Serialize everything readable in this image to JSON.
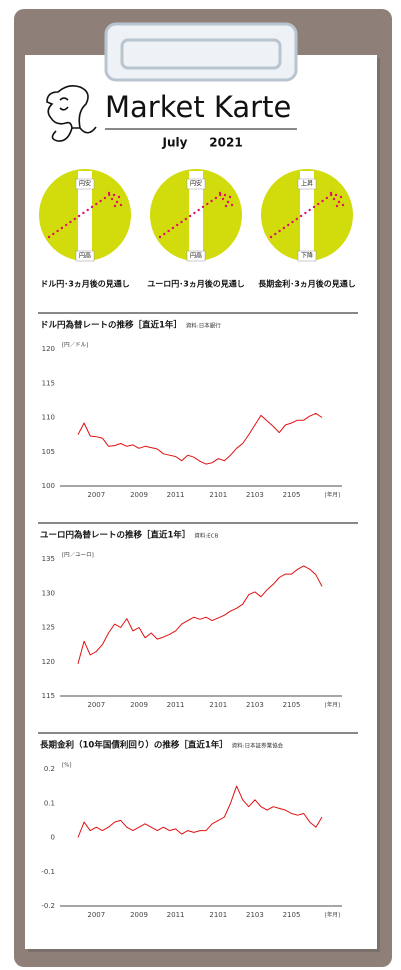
{
  "header": {
    "title": "Market Karte",
    "month": "July",
    "year": "2021"
  },
  "outlooks": [
    {
      "top": "円安",
      "bottom": "円高",
      "caption": "ドル円･3ヵ月後の見通し"
    },
    {
      "top": "円安",
      "bottom": "円高",
      "caption": "ユーロ円･3ヵ月後の見通し"
    },
    {
      "top": "上昇",
      "bottom": "下降",
      "caption": "長期金利･3ヵ月後の見通し"
    }
  ],
  "chart_data": [
    {
      "type": "line",
      "title": "ドル円為替レートの推移［直近1年］",
      "source": "資料:日本銀行",
      "y_label": "[円／ドル]",
      "x_label": "[年月]",
      "categories": [
        null,
        null,
        null,
        "2007",
        null,
        null,
        null,
        null,
        null,
        null,
        "2009",
        null,
        null,
        null,
        null,
        null,
        "2011",
        null,
        null,
        null,
        null,
        null,
        null,
        "2101",
        null,
        null,
        null,
        null,
        null,
        "2103",
        null,
        null,
        null,
        null,
        null,
        "2105",
        null,
        null,
        null,
        null,
        null
      ],
      "values": [
        107.5,
        109.2,
        107.3,
        107.2,
        107.0,
        105.8,
        105.9,
        106.2,
        105.8,
        106.0,
        105.5,
        105.8,
        105.6,
        105.4,
        104.7,
        104.5,
        104.3,
        103.7,
        104.5,
        104.2,
        103.6,
        103.2,
        103.4,
        104.0,
        103.7,
        104.5,
        105.5,
        106.2,
        107.5,
        108.9,
        110.3,
        109.5,
        108.7,
        107.8,
        108.9,
        109.2,
        109.6,
        109.6,
        110.2,
        110.6,
        110.0
      ],
      "color": "#e01010",
      "band_color": "#d4dadf",
      "ylim": [
        100,
        120
      ],
      "yticks": [
        100,
        105,
        110,
        115,
        120
      ]
    },
    {
      "type": "line",
      "title": "ユーロ円為替レートの推移［直近1年］",
      "source": "資料:ECB",
      "y_label": "[円／ユーロ]",
      "x_label": "[年月]",
      "categories": [
        null,
        null,
        null,
        "2007",
        null,
        null,
        null,
        null,
        null,
        null,
        "2009",
        null,
        null,
        null,
        null,
        null,
        "2011",
        null,
        null,
        null,
        null,
        null,
        null,
        "2101",
        null,
        null,
        null,
        null,
        null,
        "2103",
        null,
        null,
        null,
        null,
        null,
        "2105",
        null,
        null,
        null,
        null,
        null
      ],
      "values": [
        119.7,
        123.0,
        121.0,
        121.5,
        122.5,
        124.2,
        125.5,
        125.0,
        126.3,
        124.5,
        125.0,
        123.5,
        124.2,
        123.3,
        123.6,
        124.0,
        124.5,
        125.5,
        126.0,
        126.5,
        126.2,
        126.5,
        126.0,
        126.4,
        126.8,
        127.4,
        127.8,
        128.4,
        129.8,
        130.2,
        129.5,
        130.5,
        131.3,
        132.3,
        132.8,
        132.8,
        133.5,
        134.0,
        133.5,
        132.7,
        131.0
      ],
      "color": "#e01010",
      "band_color": "#d4dadf",
      "ylim": [
        115,
        135
      ],
      "yticks": [
        115,
        120,
        125,
        130,
        135
      ]
    },
    {
      "type": "line",
      "title": "長期金利（10年国債利回り）の推移［直近1年］",
      "source": "資料:日本証券業協会",
      "y_label": "[%]",
      "x_label": "[年月]",
      "categories": [
        null,
        null,
        null,
        "2007",
        null,
        null,
        null,
        null,
        null,
        null,
        "2009",
        null,
        null,
        null,
        null,
        null,
        "2011",
        null,
        null,
        null,
        null,
        null,
        null,
        "2101",
        null,
        null,
        null,
        null,
        null,
        "2103",
        null,
        null,
        null,
        null,
        null,
        "2105",
        null,
        null,
        null,
        null,
        null
      ],
      "values": [
        0.0,
        0.045,
        0.02,
        0.03,
        0.02,
        0.03,
        0.045,
        0.05,
        0.03,
        0.02,
        0.03,
        0.04,
        0.03,
        0.02,
        0.03,
        0.02,
        0.025,
        0.01,
        0.02,
        0.015,
        0.02,
        0.02,
        0.04,
        0.05,
        0.06,
        0.1,
        0.15,
        0.11,
        0.09,
        0.11,
        0.09,
        0.08,
        0.09,
        0.085,
        0.08,
        0.07,
        0.065,
        0.07,
        0.045,
        0.03,
        0.06
      ],
      "color": "#e01010",
      "band_color": "#d4dadf",
      "ylim": [
        -0.2,
        0.2
      ],
      "yticks": [
        -0.2,
        -0.1,
        0,
        0.1,
        0.2
      ]
    }
  ]
}
